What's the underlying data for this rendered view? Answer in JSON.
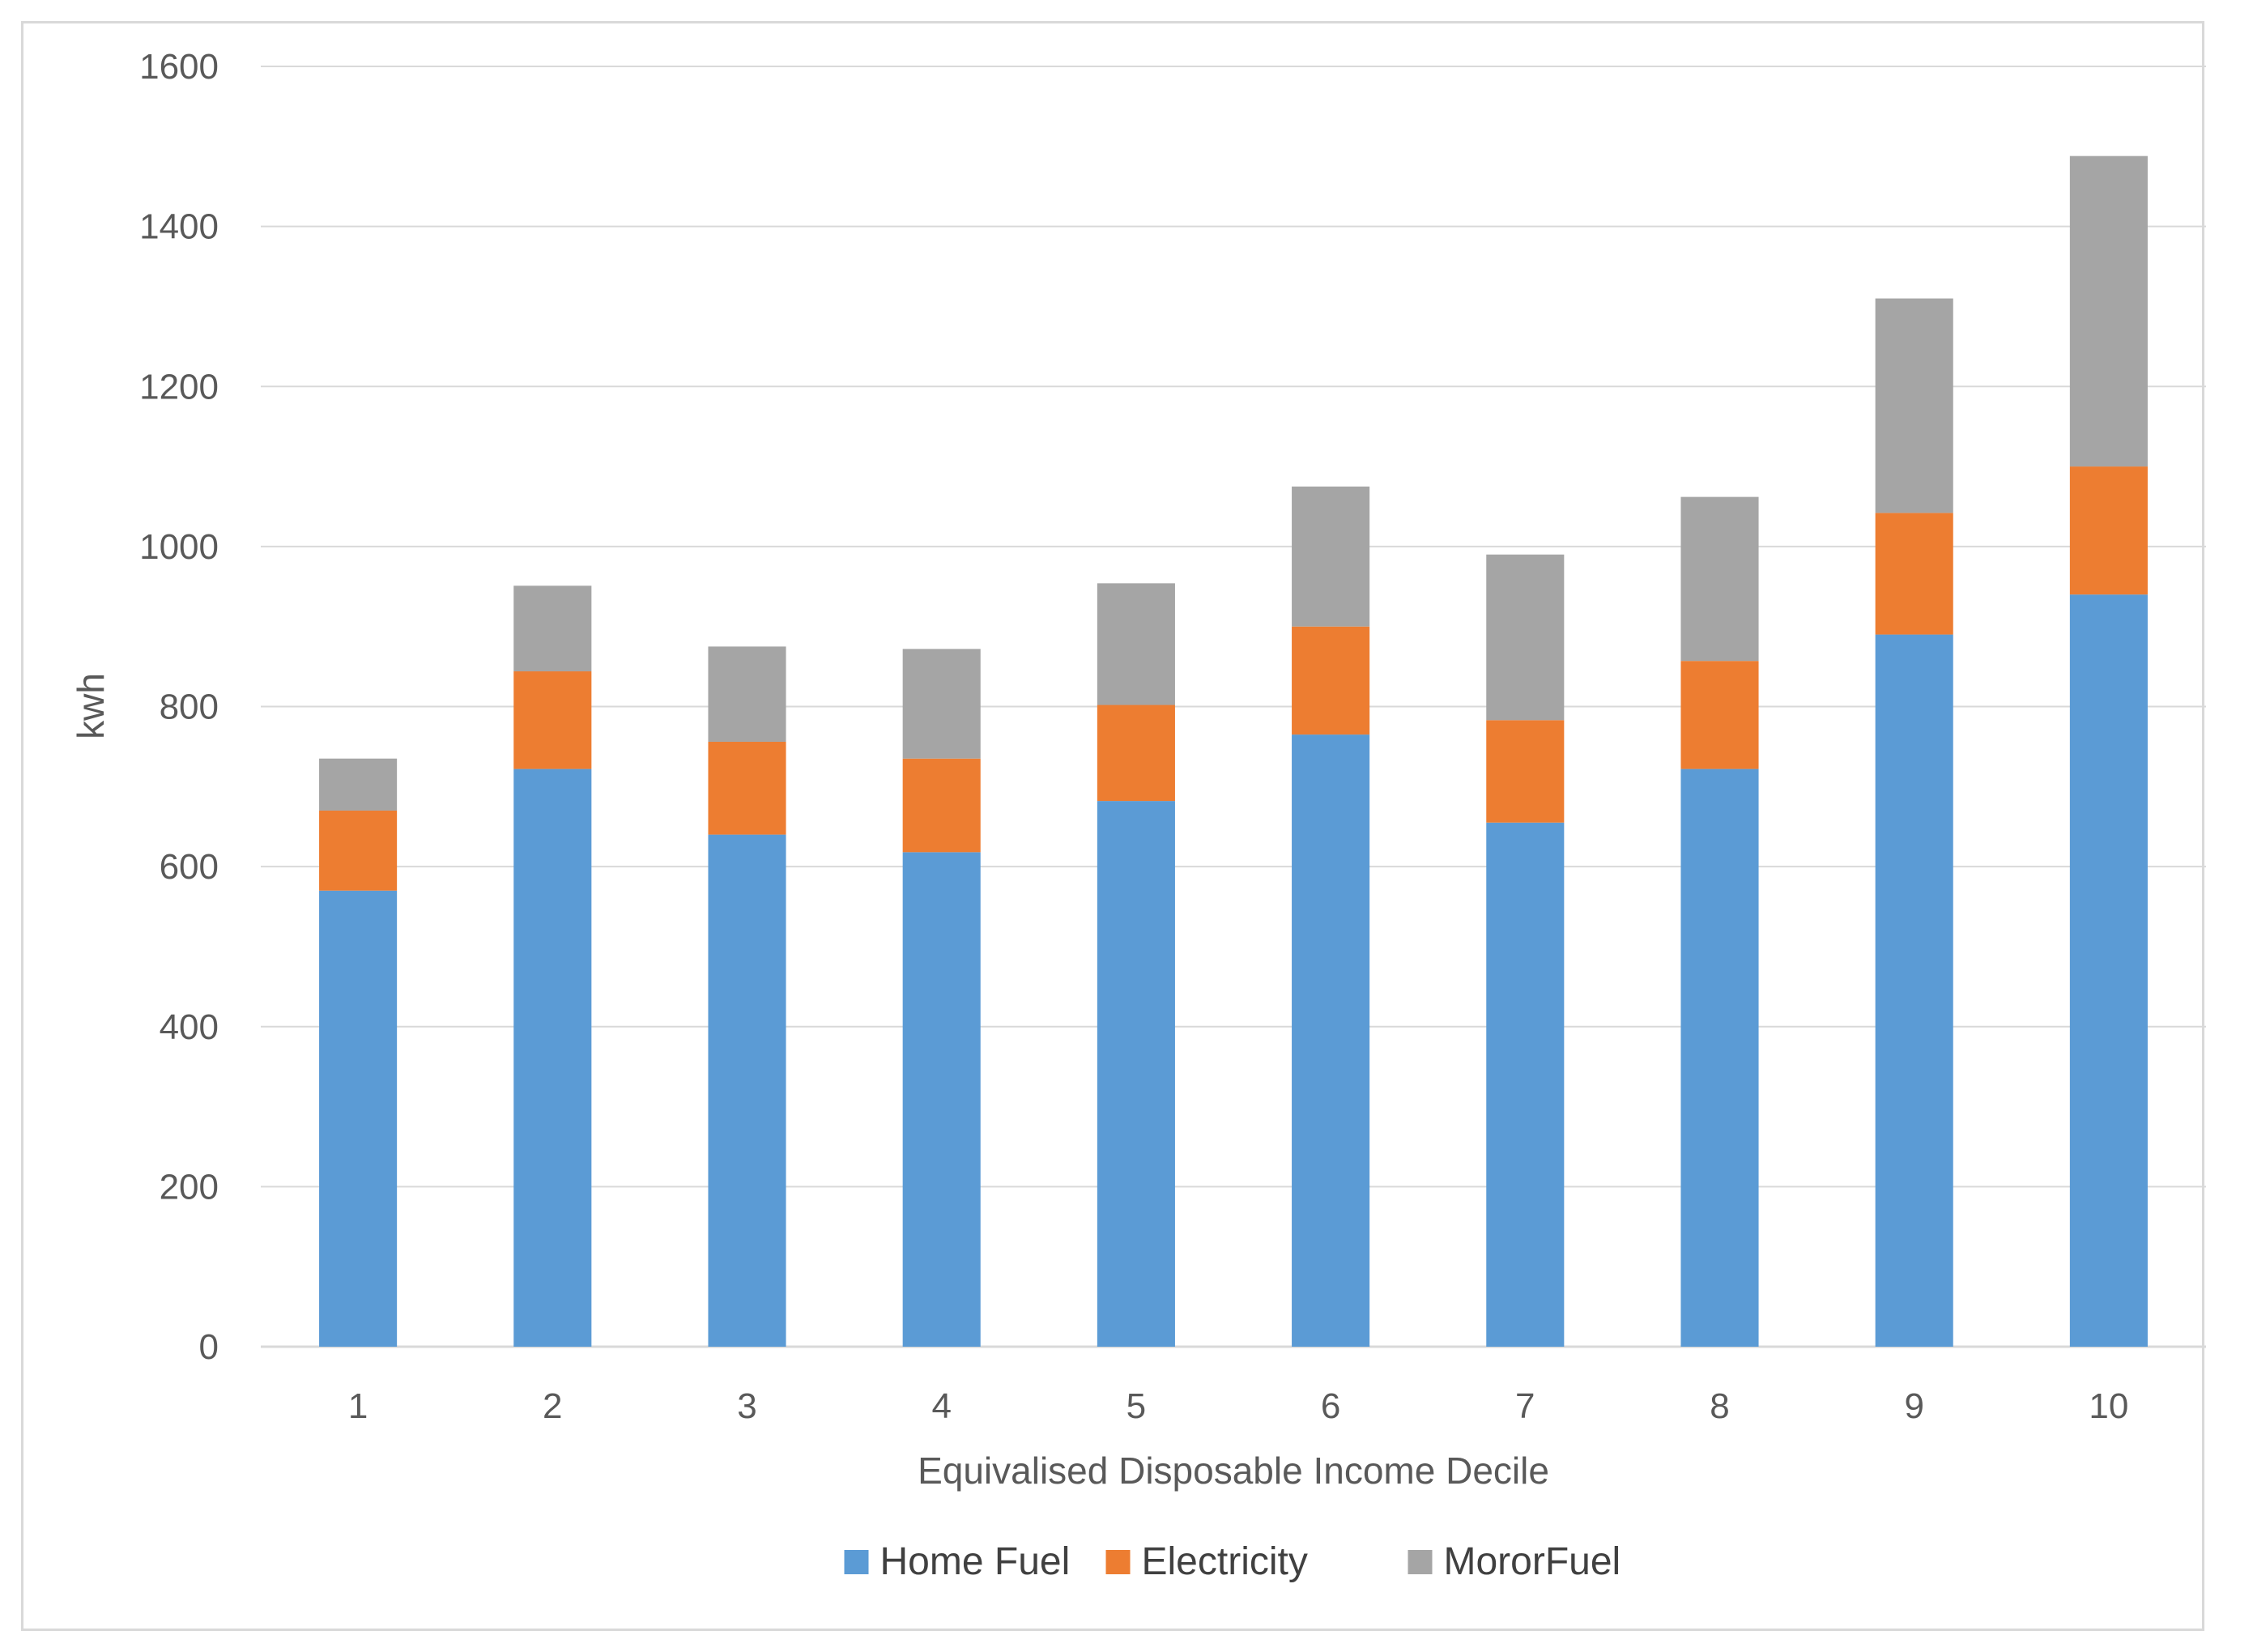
{
  "chart_data": {
    "type": "bar",
    "stacked": true,
    "title": "",
    "xlabel": "Equivalised Disposable Income Decile",
    "ylabel": "kwh",
    "ylim": [
      0,
      1600
    ],
    "yticks": [
      0,
      200,
      400,
      600,
      800,
      1000,
      1200,
      1400,
      1600
    ],
    "grid": true,
    "legend_position": "bottom",
    "categories": [
      "1",
      "2",
      "3",
      "4",
      "5",
      "6",
      "7",
      "8",
      "9",
      "10"
    ],
    "series": [
      {
        "name": "Home Fuel",
        "color": "#5b9bd5",
        "values": [
          570,
          722,
          640,
          618,
          682,
          765,
          655,
          722,
          890,
          940
        ]
      },
      {
        "name": "Electricity",
        "color": "#ed7d31",
        "values": [
          100,
          122,
          116,
          117,
          120,
          135,
          128,
          135,
          152,
          160
        ]
      },
      {
        "name": "MororFuel",
        "color": "#a5a5a5",
        "values": [
          65,
          107,
          119,
          137,
          152,
          175,
          207,
          205,
          268,
          388
        ]
      }
    ]
  }
}
